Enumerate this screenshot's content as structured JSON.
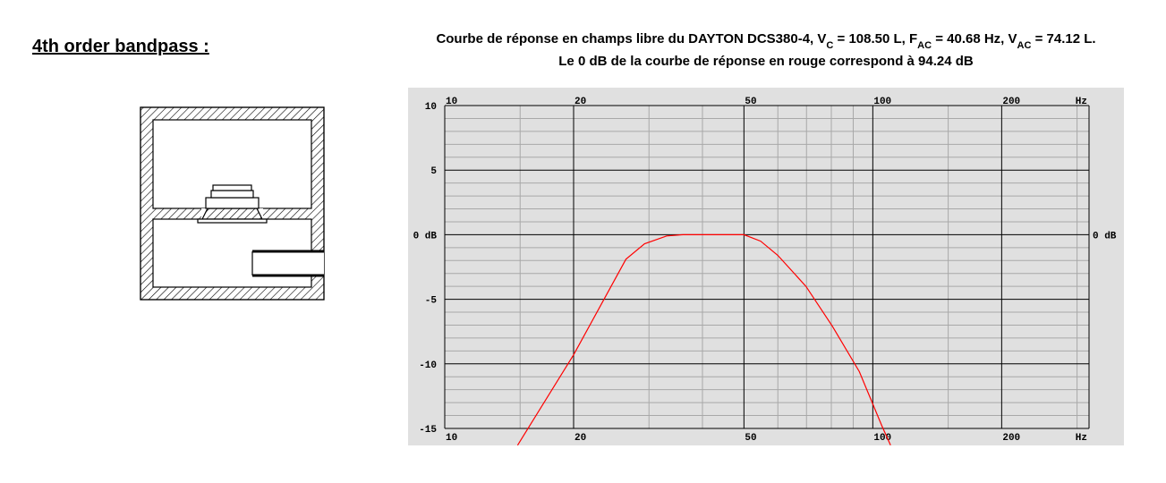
{
  "heading": "4th order bandpass :",
  "chart_data": {
    "type": "line",
    "title": [
      "Courbe de réponse en champs libre du DAYTON DCS380-4, V",
      "C",
      " = 108.50 L, F",
      "AC",
      " = 40.68 Hz, V",
      "AC",
      " = 74.12 L."
    ],
    "title_subscripts": [
      false,
      true,
      false,
      true,
      false,
      true,
      false
    ],
    "subtitle": "Le 0 dB de la courbe de réponse en rouge correspond à 94.24 dB",
    "x": [
      14.8,
      20,
      26.5,
      29.3,
      33,
      36,
      43,
      50,
      54.7,
      60,
      69.8,
      80.5,
      93,
      105,
      110
    ],
    "values": [
      -16.3,
      -9.3,
      -1.9,
      -0.7,
      -0.1,
      0,
      0,
      0,
      -0.5,
      -1.6,
      -4.0,
      -7.1,
      -10.6,
      -14.8,
      -16.3
    ],
    "color": "#ff0000",
    "log_x": true,
    "xlim": [
      10,
      320
    ],
    "xticks": [
      10,
      20,
      50,
      100,
      200
    ],
    "x_unit": "Hz",
    "minor_xticks": [
      15,
      30,
      40,
      60,
      70,
      80,
      90,
      150,
      300
    ],
    "ylim": [
      -15,
      10
    ],
    "yticks": [
      -15,
      -10,
      -5,
      {
        "value": 0,
        "label": "0 dB"
      },
      5,
      10
    ],
    "minor_yticks": [
      -14,
      -13,
      -12,
      -11,
      -9,
      -8,
      -7,
      -6,
      -4,
      -3,
      -2,
      -1,
      1,
      2,
      3,
      4,
      6,
      7,
      8,
      9
    ],
    "grid": true
  }
}
